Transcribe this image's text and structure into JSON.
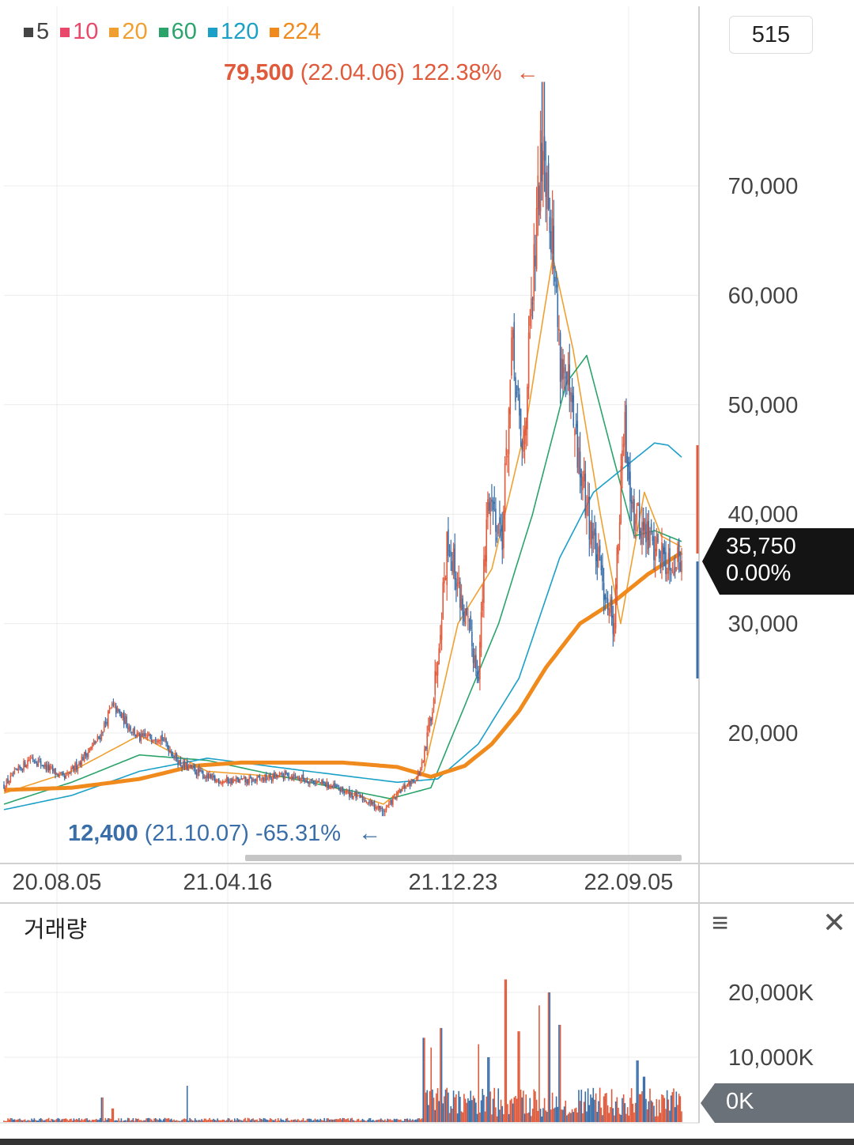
{
  "legend": [
    {
      "label": "5",
      "color": "#444444"
    },
    {
      "label": "10",
      "color": "#e8486a"
    },
    {
      "label": "20",
      "color": "#f0a030"
    },
    {
      "label": "60",
      "color": "#2aa46a"
    },
    {
      "label": "120",
      "color": "#1ba0c8"
    },
    {
      "label": "224",
      "color": "#f08a1c"
    }
  ],
  "period_value": "515",
  "high_annotation": {
    "price": "79,500",
    "date": "(22.04.06)",
    "pct": "122.38%",
    "arrow": "←",
    "color": "#e05a3c"
  },
  "low_annotation": {
    "price": "12,400",
    "date": "(21.10.07)",
    "pct": "-65.31%",
    "arrow": "←",
    "color": "#3a6ea8"
  },
  "current": {
    "price": "35,750",
    "change": "0.00%"
  },
  "volume": {
    "title": "거래량",
    "menu_icon": "≡",
    "close_icon": "✕",
    "zero_label": "0K"
  },
  "chart_data": [
    {
      "type": "candlestick",
      "title": "",
      "x_ticks": [
        "20.08.05",
        "21.04.16",
        "21.12.23",
        "22.09.05"
      ],
      "y_ticks": [
        "20,000",
        "30,000",
        "40,000",
        "50,000",
        "60,000",
        "70,000"
      ],
      "y_tick_values": [
        20000,
        30000,
        40000,
        50000,
        60000,
        70000
      ],
      "ylim": [
        9000,
        80500
      ],
      "high": {
        "value": 79500,
        "date": "22.04.06"
      },
      "low": {
        "value": 12400,
        "date": "21.10.07"
      },
      "last": 35750,
      "close_keypoints": [
        [
          0,
          15200
        ],
        [
          0.04,
          17800
        ],
        [
          0.09,
          15800
        ],
        [
          0.14,
          19500
        ],
        [
          0.16,
          22500
        ],
        [
          0.2,
          19500
        ],
        [
          0.23,
          19800
        ],
        [
          0.26,
          17200
        ],
        [
          0.31,
          15700
        ],
        [
          0.36,
          15600
        ],
        [
          0.42,
          16200
        ],
        [
          0.48,
          15200
        ],
        [
          0.53,
          14000
        ],
        [
          0.56,
          12900
        ],
        [
          0.59,
          15000
        ],
        [
          0.61,
          16000
        ],
        [
          0.62,
          17500
        ],
        [
          0.635,
          24000
        ],
        [
          0.655,
          38000
        ],
        [
          0.675,
          32000
        ],
        [
          0.7,
          25500
        ],
        [
          0.715,
          42000
        ],
        [
          0.735,
          38000
        ],
        [
          0.75,
          55000
        ],
        [
          0.765,
          45000
        ],
        [
          0.78,
          60000
        ],
        [
          0.795,
          75000
        ],
        [
          0.805,
          69000
        ],
        [
          0.82,
          55000
        ],
        [
          0.835,
          50000
        ],
        [
          0.85,
          44000
        ],
        [
          0.875,
          36000
        ],
        [
          0.9,
          30000
        ],
        [
          0.915,
          48000
        ],
        [
          0.93,
          40000
        ],
        [
          0.95,
          38000
        ],
        [
          0.975,
          36000
        ],
        [
          1.0,
          35750
        ]
      ],
      "moving_averages": [
        {
          "period": "20",
          "color": "#f0a030",
          "keypoints": [
            [
              0,
              14500
            ],
            [
              0.1,
              16500
            ],
            [
              0.2,
              19800
            ],
            [
              0.3,
              16500
            ],
            [
              0.45,
              15800
            ],
            [
              0.56,
              13500
            ],
            [
              0.62,
              16500
            ],
            [
              0.67,
              30000
            ],
            [
              0.72,
              35000
            ],
            [
              0.77,
              48000
            ],
            [
              0.81,
              63500
            ],
            [
              0.84,
              55000
            ],
            [
              0.88,
              40000
            ],
            [
              0.91,
              30000
            ],
            [
              0.945,
              42000
            ],
            [
              0.97,
              38000
            ],
            [
              1,
              37000
            ]
          ]
        },
        {
          "period": "60",
          "color": "#2aa46a",
          "keypoints": [
            [
              0,
              13500
            ],
            [
              0.1,
              15500
            ],
            [
              0.2,
              18000
            ],
            [
              0.3,
              17500
            ],
            [
              0.45,
              15500
            ],
            [
              0.57,
              14000
            ],
            [
              0.63,
              15000
            ],
            [
              0.68,
              22500
            ],
            [
              0.73,
              30000
            ],
            [
              0.78,
              40000
            ],
            [
              0.83,
              52000
            ],
            [
              0.86,
              54500
            ],
            [
              0.9,
              45000
            ],
            [
              0.93,
              38000
            ],
            [
              0.96,
              38500
            ],
            [
              1,
              37500
            ]
          ]
        },
        {
          "period": "120",
          "color": "#1ba0c8",
          "keypoints": [
            [
              0,
              13000
            ],
            [
              0.1,
              14300
            ],
            [
              0.2,
              16500
            ],
            [
              0.3,
              17700
            ],
            [
              0.45,
              16500
            ],
            [
              0.58,
              15500
            ],
            [
              0.64,
              15800
            ],
            [
              0.7,
              19000
            ],
            [
              0.76,
              25000
            ],
            [
              0.82,
              36000
            ],
            [
              0.87,
              42000
            ],
            [
              0.9,
              43500
            ],
            [
              0.94,
              45500
            ],
            [
              0.96,
              46500
            ],
            [
              0.98,
              46300
            ],
            [
              1,
              45200
            ]
          ]
        },
        {
          "period": "224",
          "color": "#f08a1c",
          "keypoints": [
            [
              0,
              14800
            ],
            [
              0.1,
              15000
            ],
            [
              0.2,
              15800
            ],
            [
              0.28,
              17000
            ],
            [
              0.35,
              17300
            ],
            [
              0.5,
              17300
            ],
            [
              0.58,
              16900
            ],
            [
              0.63,
              16000
            ],
            [
              0.68,
              17000
            ],
            [
              0.72,
              19000
            ],
            [
              0.76,
              22000
            ],
            [
              0.8,
              26000
            ],
            [
              0.85,
              30000
            ],
            [
              0.9,
              32000
            ],
            [
              0.95,
              34500
            ],
            [
              1,
              36500
            ]
          ]
        }
      ]
    },
    {
      "type": "bar",
      "title": "거래량",
      "y_ticks": [
        "0K",
        "10,000K",
        "20,000K"
      ],
      "y_tick_values": [
        0,
        10000,
        20000
      ],
      "ylim": [
        0,
        24000
      ],
      "spikes": [
        [
          0.145,
          3800
        ],
        [
          0.16,
          2100
        ],
        [
          0.27,
          5600
        ],
        [
          0.62,
          13000
        ],
        [
          0.63,
          11500
        ],
        [
          0.645,
          14500
        ],
        [
          0.7,
          12000
        ],
        [
          0.715,
          10000
        ],
        [
          0.74,
          22000
        ],
        [
          0.76,
          14000
        ],
        [
          0.79,
          18000
        ],
        [
          0.805,
          20000
        ],
        [
          0.82,
          15000
        ],
        [
          0.935,
          9500
        ],
        [
          0.945,
          7000
        ]
      ]
    }
  ]
}
